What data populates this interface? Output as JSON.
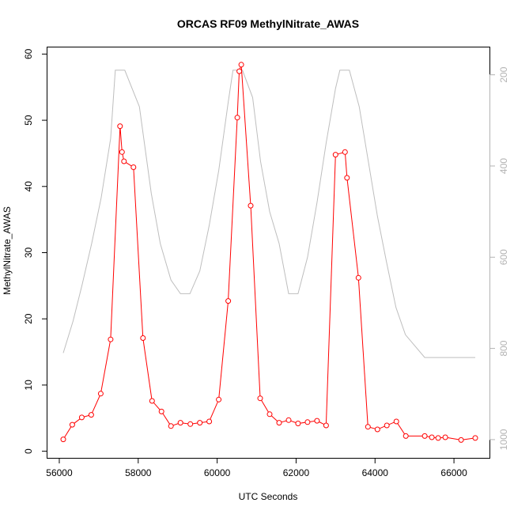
{
  "chart_data": {
    "type": "line",
    "title": "ORCAS RF09 MethylNitrate_AWAS",
    "xlabel": "UTC Seconds",
    "ylabel": "MethylNitrate_AWAS",
    "xlim": [
      55700,
      66900
    ],
    "ylim": [
      -1,
      61
    ],
    "x_ticks": [
      56000,
      58000,
      60000,
      62000,
      64000,
      66000
    ],
    "y_ticks": [
      0,
      10,
      20,
      30,
      40,
      50,
      60
    ],
    "y2_lim": [
      1040,
      140
    ],
    "y2_ticks": [
      200,
      400,
      600,
      800,
      1000
    ],
    "grid": false,
    "series": [
      {
        "color": "#ff0000",
        "axis": "left",
        "markers": "open-circle",
        "x": [
          56100,
          56330,
          56570,
          56810,
          57050,
          57300,
          57540,
          57590,
          57640,
          57880,
          58120,
          58350,
          58590,
          58830,
          59070,
          59320,
          59560,
          59800,
          60040,
          60280,
          60510,
          60560,
          60610,
          60850,
          61090,
          61330,
          61570,
          61810,
          62050,
          62290,
          62530,
          62760,
          63000,
          63240,
          63290,
          63580,
          63820,
          64060,
          64300,
          64540,
          64780,
          65260,
          65440,
          65600,
          65780,
          66180,
          66540
        ],
        "y": [
          1.8,
          4.0,
          5.1,
          5.5,
          8.7,
          16.9,
          49.1,
          45.2,
          43.8,
          42.9,
          17.1,
          7.6,
          6.0,
          3.8,
          4.3,
          4.1,
          4.3,
          4.5,
          7.8,
          22.7,
          50.4,
          57.4,
          58.4,
          37.1,
          8.0,
          5.6,
          4.3,
          4.7,
          4.2,
          4.4,
          4.6,
          3.9,
          44.8,
          45.2,
          41.3,
          26.2,
          3.7,
          3.3,
          3.9,
          4.5,
          2.3,
          2.3,
          2.1,
          2.0,
          2.1,
          1.7,
          2.0
        ]
      },
      {
        "color": "#bebebe",
        "axis": "right",
        "markers": "none",
        "x": [
          56100,
          56350,
          56580,
          56820,
          57060,
          57300,
          57420,
          57660,
          58030,
          58330,
          58560,
          58830,
          59070,
          59310,
          59560,
          59800,
          60040,
          60280,
          60400,
          60640,
          60900,
          61100,
          61330,
          61570,
          61810,
          62050,
          62290,
          62530,
          62760,
          63000,
          63110,
          63350,
          63600,
          63830,
          64060,
          64290,
          64530,
          64770,
          65260,
          65500,
          66100,
          66540
        ],
        "y": [
          810,
          740,
          660,
          570,
          470,
          340,
          190,
          190,
          270,
          460,
          570,
          650,
          680,
          680,
          630,
          530,
          410,
          260,
          190,
          190,
          250,
          390,
          500,
          570,
          680,
          680,
          600,
          480,
          350,
          230,
          190,
          190,
          270,
          390,
          510,
          610,
          710,
          770,
          820,
          820,
          820,
          820
        ]
      }
    ]
  },
  "colors": {
    "methyl_nitrate": "#ff0000",
    "pressure": "#bebebe",
    "axis": "#000000",
    "right_axis": "#b3b3b3"
  }
}
